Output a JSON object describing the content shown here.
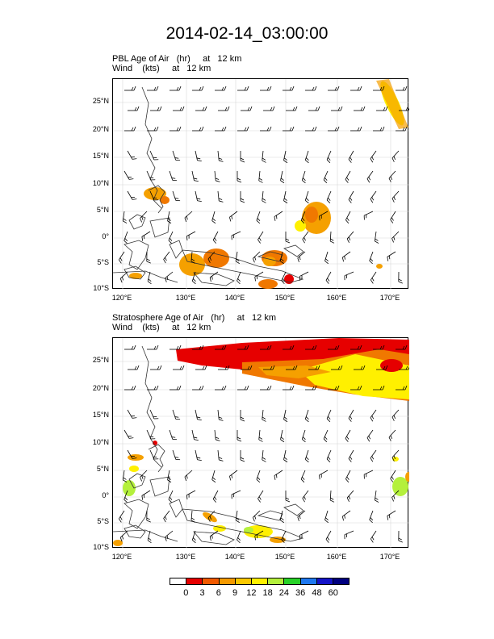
{
  "title": "2014-02-14_03:00:00",
  "panels": [
    {
      "field": "PBL Age of Air   (hr)     at   12 km",
      "wind": "Wind    (kts)     at   12 km"
    },
    {
      "field": "Stratosphere Age of Air   (hr)     at   12 km",
      "wind": "Wind    (kts)     at   12 km"
    }
  ],
  "lat_ticks": [
    "25°N",
    "20°N",
    "15°N",
    "10°N",
    "5°N",
    "0°",
    "5°S",
    "10°S"
  ],
  "lon_ticks": [
    "120°E",
    "130°E",
    "140°E",
    "150°E",
    "160°E",
    "170°E"
  ],
  "colorbar": {
    "labels": [
      "0",
      "3",
      "6",
      "9",
      "12",
      "18",
      "24",
      "36",
      "48",
      "60"
    ],
    "colors": [
      "#ffffff",
      "#e60000",
      "#f25a00",
      "#f59a00",
      "#fac800",
      "#fff000",
      "#b4f03c",
      "#28d228",
      "#1e78f0",
      "#1414c8",
      "#000080"
    ]
  },
  "palette": {
    "red": "#e60000",
    "orange": "#f07800",
    "amber": "#f5a000",
    "yellow": "#fff000",
    "yellow_green": "#b4f03c"
  }
}
